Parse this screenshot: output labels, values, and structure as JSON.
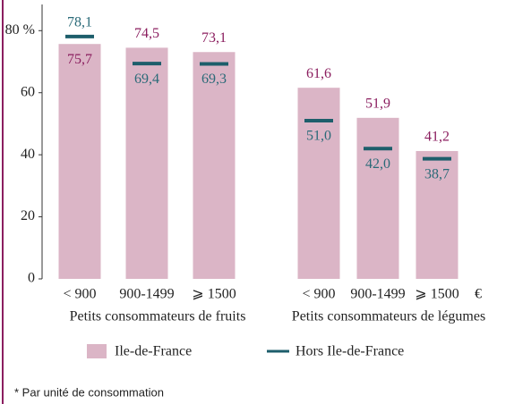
{
  "chart_data": {
    "type": "bar",
    "categories": [
      "< 900",
      "900-1499",
      "⩾ 1500",
      "< 900",
      "900-1499",
      "⩾ 1500"
    ],
    "groups": [
      "Petits consommateurs de fruits",
      "Petits consommateurs de légumes"
    ],
    "x_unit": "€",
    "series": [
      {
        "name": "Ile-de-France",
        "color": "#dbb5c6",
        "values": [
          75.7,
          74.5,
          73.1,
          61.6,
          51.9,
          41.2
        ],
        "value_labels": [
          "75,7",
          "74,5",
          "73,1",
          "61,6",
          "51,9",
          "41,2"
        ]
      },
      {
        "name": "Hors Ile-de-France",
        "color": "#1d5e6b",
        "values": [
          78.1,
          69.4,
          69.3,
          51.0,
          42.0,
          38.7
        ],
        "value_labels": [
          "78,1",
          "69,4",
          "69,3",
          "51,0",
          "42,0",
          "38,7"
        ]
      }
    ],
    "ylim": [
      0,
      87
    ],
    "yticks": [
      0,
      20,
      40,
      60,
      {
        "value": 80,
        "label": "80 %"
      }
    ],
    "footnote": "* Par unité de consommation"
  }
}
